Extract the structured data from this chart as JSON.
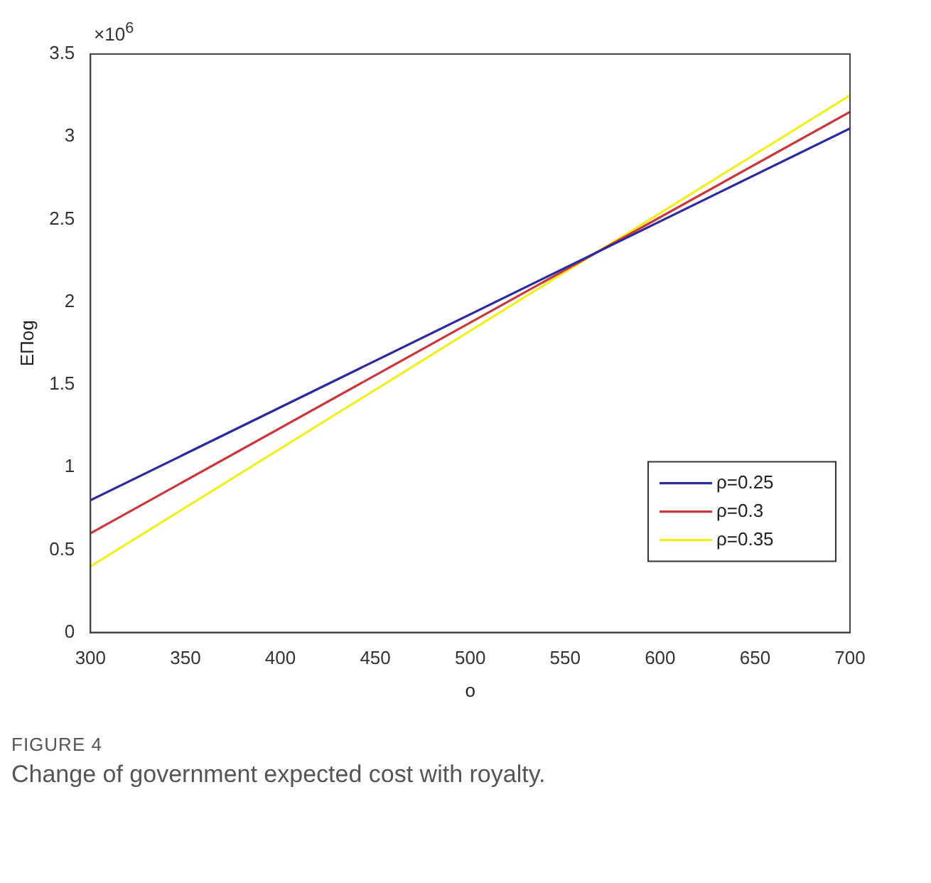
{
  "chart_data": {
    "type": "line",
    "xlabel": "o",
    "ylabel": "EΠog",
    "x": [
      300,
      700
    ],
    "series": [
      {
        "name": "ρ=0.25",
        "color": "#2b2b9e",
        "values": [
          0.8,
          3.05
        ]
      },
      {
        "name": "ρ=0.3",
        "color": "#c8383c",
        "values": [
          0.6,
          3.15
        ]
      },
      {
        "name": "ρ=0.35",
        "color": "#f0f020",
        "values": [
          0.4,
          3.25
        ]
      }
    ],
    "xlim": [
      300,
      700
    ],
    "xticks": [
      300,
      350,
      400,
      450,
      500,
      550,
      600,
      650,
      700
    ],
    "ylim": [
      0,
      3.5
    ],
    "yticks": [
      0,
      0.5,
      1,
      1.5,
      2,
      2.5,
      3,
      3.5
    ],
    "grid": false,
    "legend": "bottom right",
    "marker": "none",
    "line_style": "solid",
    "annotations": [
      "×10$^{6}$",
      "FIGURE 4",
      "Change of government expected cost with royalty."
    ]
  }
}
